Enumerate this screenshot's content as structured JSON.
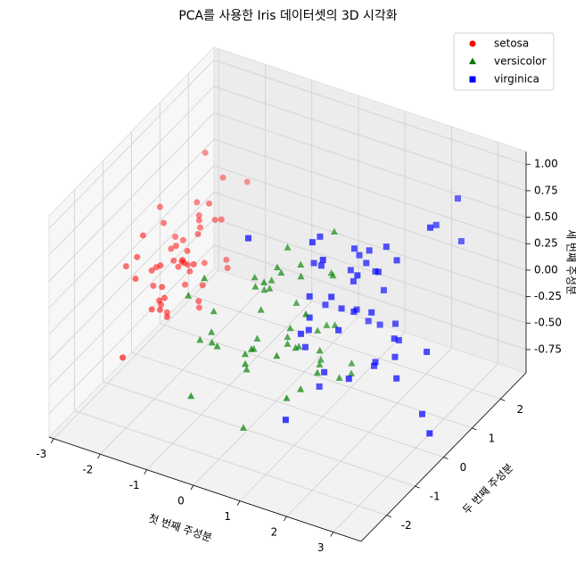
{
  "chart_data": {
    "type": "scatter3d",
    "title": "PCA를 사용한 Iris 데이터셋의 3D 시각화",
    "xlabel": "첫 번째 주성분",
    "ylabel": "두 번째 주성분",
    "zlabel": "세 번째 주성분",
    "xlim": [
      -3.1,
      3.6
    ],
    "ylim": [
      -2.9,
      2.9
    ],
    "zlim": [
      -0.97,
      1.12
    ],
    "xticks": [
      -3,
      -2,
      -1,
      0,
      1,
      2,
      3
    ],
    "yticks": [
      -2,
      -1,
      0,
      1,
      2
    ],
    "zticks": [
      -0.75,
      {
        "value": -0.5,
        "label": "-0.50"
      },
      -0.25,
      {
        "value": 0,
        "label": "0.00"
      },
      0.25,
      {
        "value": 0.5,
        "label": "0.50"
      },
      0.75,
      {
        "value": 1,
        "label": "1.00"
      }
    ],
    "grid": true,
    "legend": "upper right",
    "series": [
      {
        "name": "setosa",
        "color": "#ff0000",
        "marker": "circle",
        "x": [
          -2.26,
          -2.08,
          -2.36,
          -2.3,
          -2.39,
          -2.08,
          -2.44,
          -2.23,
          -2.33,
          -2.18,
          -2.17,
          -2.33,
          -2.22,
          -2.63,
          -2.2,
          -2.26,
          -2.21,
          -2.19,
          -1.9,
          -2.34,
          -1.91,
          -2.21,
          -2.77,
          -1.82,
          -2.23,
          -1.95,
          -2.05,
          -2.17,
          -2.14,
          -2.27,
          -2.14,
          -1.83,
          -2.61,
          -2.45,
          -2.11,
          -2.21,
          -2.05,
          -2.52,
          -2.43,
          -2.17,
          -2.29,
          -1.86,
          -2.56,
          -1.96,
          -2.13,
          -2.07,
          -2.38,
          -2.4,
          -2.23,
          -2.2
        ],
        "y": [
          0.48,
          -0.67,
          -0.34,
          -0.6,
          0.65,
          1.49,
          0.05,
          0.22,
          -1.12,
          -0.47,
          1.04,
          0.13,
          -0.73,
          -0.96,
          1.86,
          2.69,
          1.48,
          0.49,
          1.41,
          1.13,
          0.41,
          0.92,
          0.46,
          0.09,
          0.14,
          -0.63,
          0.24,
          0.53,
          0.31,
          -0.34,
          -0.5,
          0.42,
          1.79,
          2.15,
          -0.46,
          -0.21,
          0.66,
          0.59,
          -0.9,
          0.27,
          0.44,
          -2.34,
          -0.48,
          0.47,
          1.14,
          -0.71,
          1.12,
          -0.38,
          0.99,
          0.01
        ],
        "z": [
          -0.13,
          -0.23,
          0.04,
          0.09,
          0.02,
          0.03,
          0.34,
          -0.09,
          0.15,
          -0.25,
          -0.27,
          0.09,
          -0.23,
          0.18,
          -0.47,
          0.03,
          0.01,
          -0.14,
          -0.38,
          0.13,
          -0.42,
          0.16,
          0.33,
          0.03,
          0.13,
          -0.29,
          0.08,
          -0.21,
          -0.27,
          0.07,
          -0.07,
          -0.26,
          0.5,
          0.19,
          -0.18,
          -0.4,
          -0.57,
          0.05,
          0.28,
          -0.03,
          -0.11,
          -0.19,
          0.35,
          0.19,
          0.27,
          -0.13,
          0.25,
          -0.13,
          0.07,
          0.03
        ]
      },
      {
        "name": "versicolor",
        "color": "#008000",
        "marker": "triangle",
        "x": [
          1.1,
          0.73,
          1.24,
          0.41,
          1.07,
          0.39,
          0.75,
          -0.5,
          0.92,
          -0.02,
          -0.26,
          0.44,
          0.37,
          0.8,
          -0.12,
          0.65,
          0.41,
          0.02,
          1.22,
          0.16,
          0.88,
          0.4,
          1.22,
          0.61,
          0.7,
          0.88,
          1.25,
          1.35,
          0.71,
          -0.48,
          -0.23,
          -0.37,
          0.02,
          1.29,
          0.37,
          0.75,
          1.03,
          0.86,
          0.15,
          0.17,
          0.41,
          0.77,
          0.14,
          -0.47,
          0.26,
          0.1,
          0.3,
          0.49,
          -0.62,
          0.21
        ],
        "y": [
          0.86,
          0.59,
          0.62,
          -1.75,
          -0.21,
          -0.59,
          0.78,
          -1.85,
          0.03,
          -2.03,
          -2.56,
          0.0,
          -1.75,
          -0.43,
          -0.55,
          0.4,
          -0.26,
          -1.06,
          -1.62,
          -1.04,
          0.61,
          -0.25,
          -1.13,
          -0.59,
          -0.34,
          0.14,
          -0.59,
          0.02,
          -0.29,
          -1.4,
          -1.87,
          -1.66,
          -0.69,
          -1.06,
          -0.42,
          0.72,
          0.39,
          -1.38,
          -0.4,
          -1.36,
          -1.09,
          -0.57,
          -0.95,
          -2.31,
          -1.29,
          -0.57,
          -0.71,
          -0.3,
          -1.5,
          -0.87
        ],
        "z": [
          -0.69,
          -0.31,
          -0.7,
          -0.08,
          -0.28,
          0.51,
          0.11,
          0.04,
          -0.5,
          0.1,
          -0.26,
          0.02,
          -0.69,
          0.44,
          0.33,
          -0.32,
          0.61,
          -0.38,
          -0.32,
          -0.17,
          0.59,
          -0.24,
          -0.37,
          -0.18,
          -0.26,
          -0.49,
          -0.36,
          -0.56,
          0.5,
          0.19,
          0.06,
          0.08,
          -0.19,
          0.33,
          0.41,
          0.15,
          -0.21,
          -0.04,
          0.3,
          -0.13,
          0.51,
          -0.2,
          0.39,
          0.59,
          -0.09,
          0.25,
          0.33,
          -0.13,
          0.51,
          0.16
        ]
      },
      {
        "name": "virginica",
        "color": "#0000ff",
        "marker": "square",
        "x": [
          1.84,
          1.15,
          2.2,
          1.44,
          1.87,
          2.75,
          0.36,
          2.3,
          2.0,
          2.27,
          1.37,
          1.6,
          1.88,
          1.25,
          1.46,
          1.59,
          1.47,
          2.43,
          3.3,
          1.26,
          2.04,
          0.98,
          2.89,
          1.33,
          1.7,
          1.95,
          1.17,
          1.02,
          1.79,
          1.86,
          2.43,
          2.3,
          1.86,
          1.11,
          1.2,
          2.8,
          1.58,
          1.35,
          0.81,
          1.69,
          1.82,
          1.35,
          1.15,
          2.0,
          1.87,
          1.56,
          1.52,
          1.37,
          1.26,
          0.96
        ],
        "y": [
          0.87,
          -0.7,
          0.56,
          -0.05,
          0.3,
          0.8,
          -1.56,
          0.42,
          -0.71,
          1.92,
          0.69,
          -0.42,
          0.42,
          -1.17,
          -0.44,
          0.68,
          0.32,
          2.54,
          0.0,
          -1.72,
          0.91,
          -0.57,
          0.41,
          -0.48,
          1.01,
          1.01,
          -0.32,
          0.07,
          -0.19,
          0.56,
          0.26,
          2.63,
          -0.18,
          -0.29,
          -0.81,
          0.84,
          1.07,
          0.42,
          0.01,
          0.41,
          0.52,
          0.63,
          -0.7,
          1.05,
          0.39,
          -0.9,
          0.27,
          1.01,
          -0.78,
          -0.02
        ],
        "z": [
          0.52,
          0.38,
          -0.21,
          0.13,
          0.06,
          -0.32,
          1.05,
          -0.33,
          -0.27,
          0.5,
          0.42,
          0.05,
          -0.44,
          0.17,
          0.35,
          0.5,
          0.29,
          0.2,
          -0.79,
          -0.49,
          0.41,
          -0.16,
          -0.78,
          -0.37,
          0.05,
          -0.23,
          0.57,
          0.07,
          0.19,
          0.37,
          -0.47,
          0.56,
          0.54,
          -0.59,
          0.1,
          0.85,
          -0.31,
          0.35,
          0.45,
          0.47,
          0.38,
          -0.08,
          0.18,
          -0.39,
          -0.47,
          0.84,
          0.62,
          -0.29,
          0.93,
          0.73
        ]
      }
    ]
  }
}
